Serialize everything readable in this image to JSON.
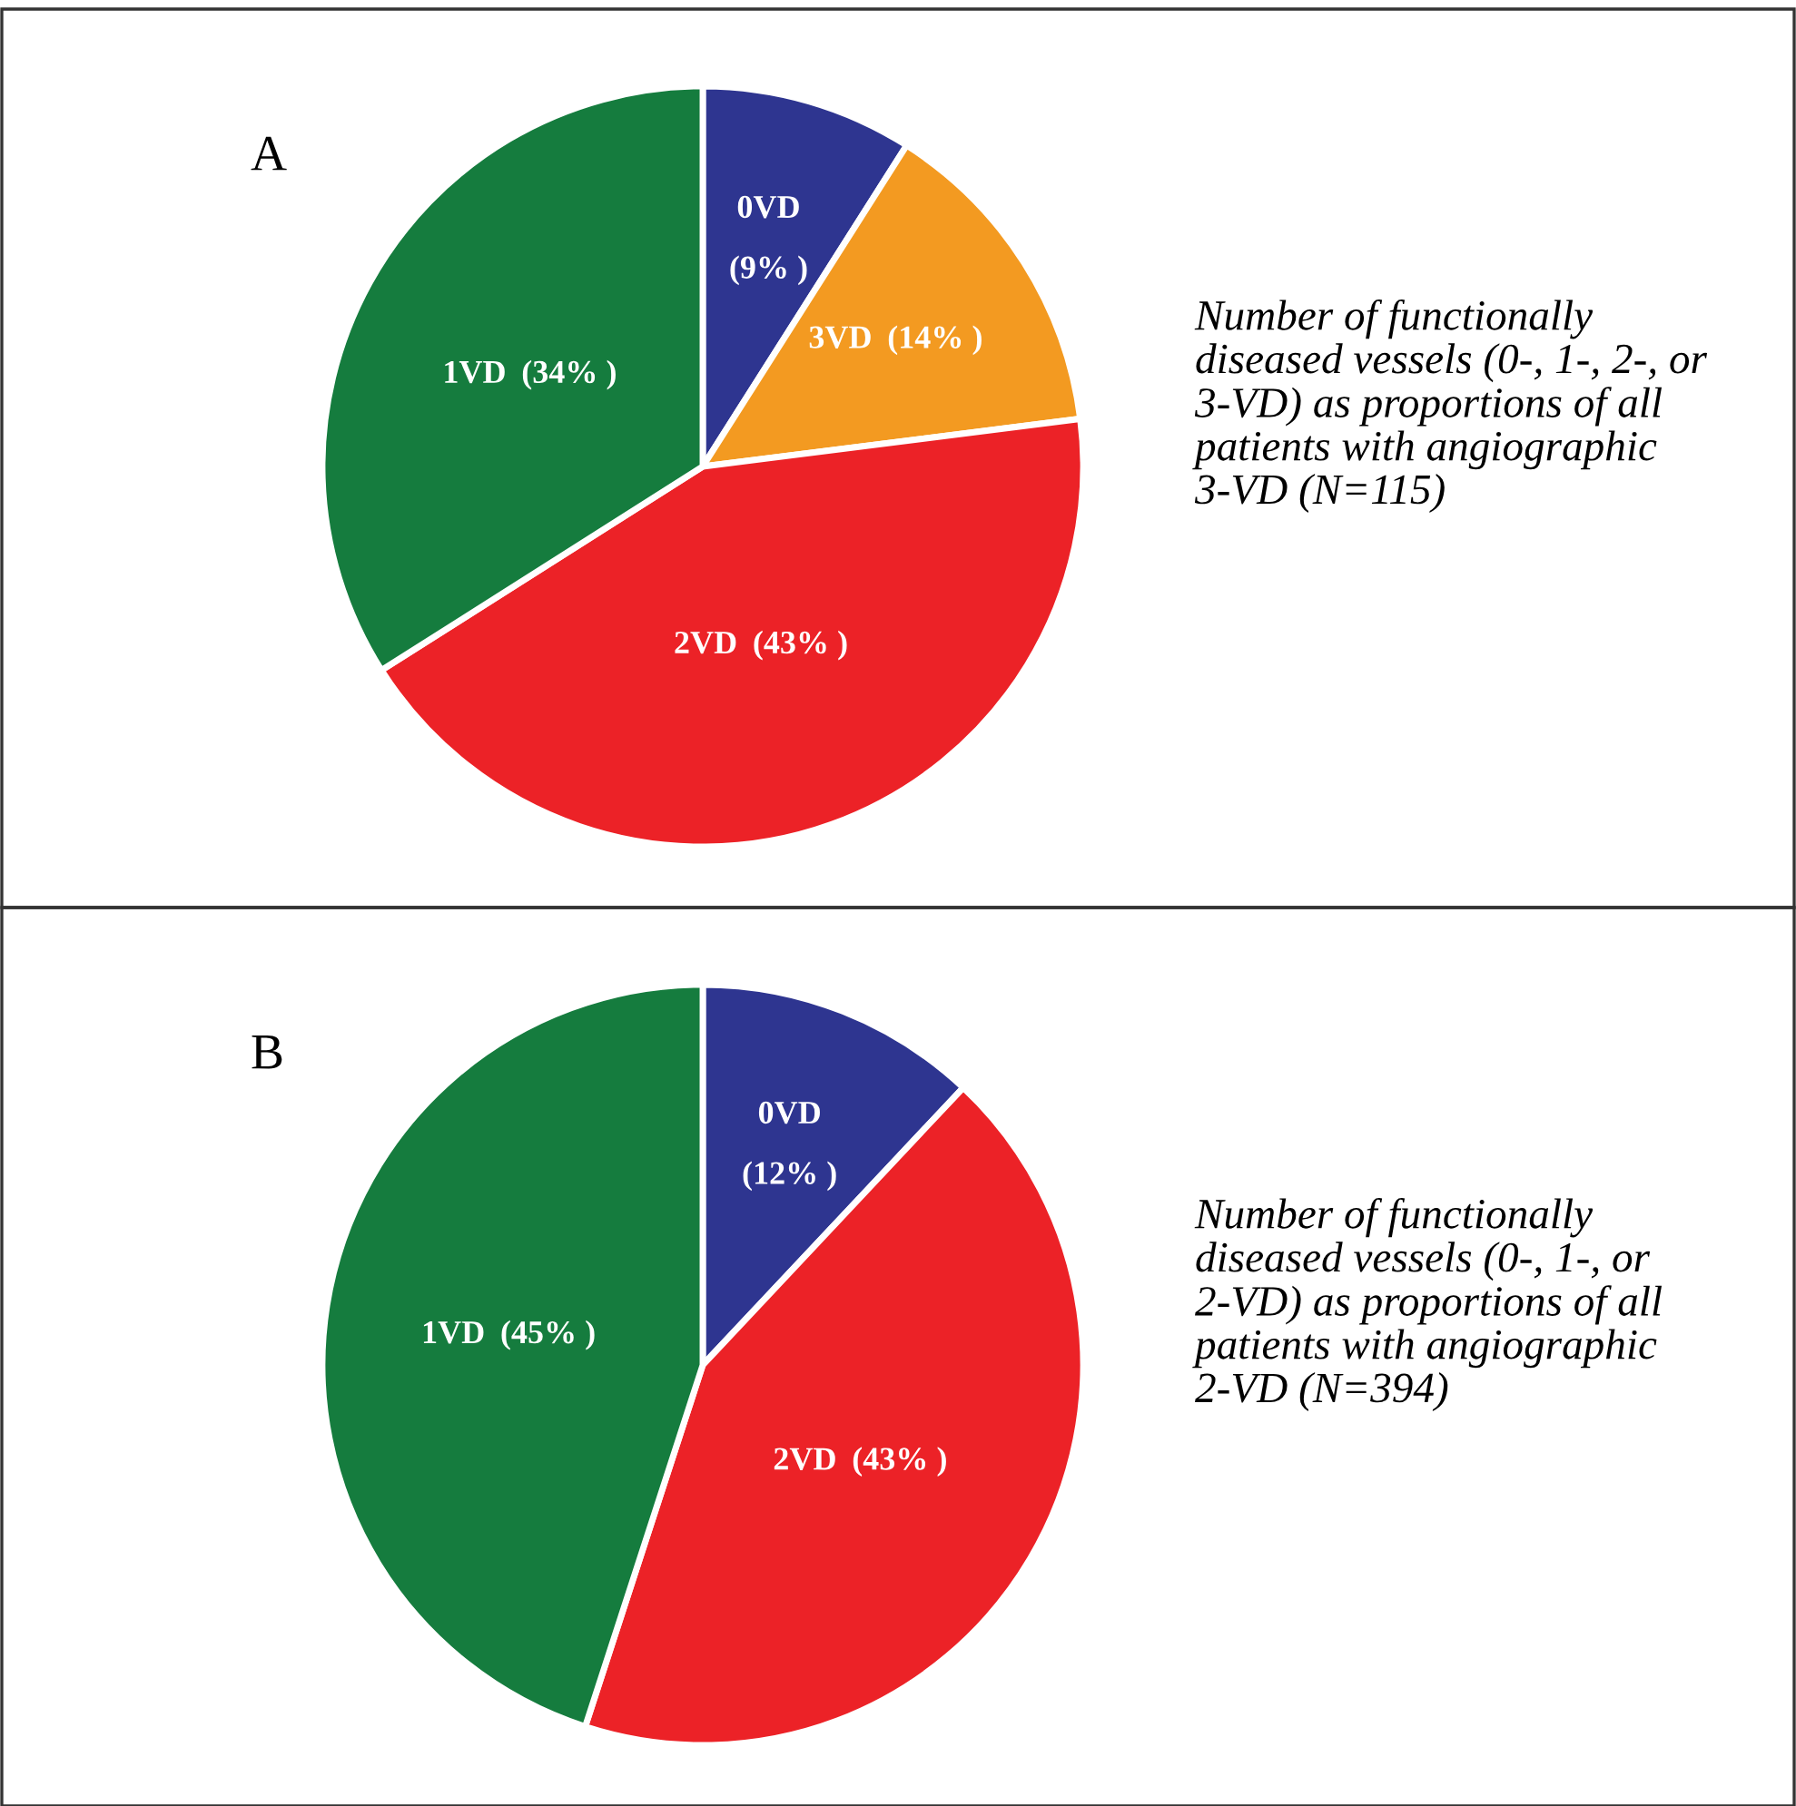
{
  "chart_data": [
    {
      "type": "pie",
      "title": "A",
      "categories": [
        "0VD",
        "3VD",
        "2VD",
        "1VD"
      ],
      "values": [
        9,
        14,
        43,
        34
      ],
      "colors": [
        "#2e3590",
        "#f39a21",
        "#ec2227",
        "#157c3e"
      ],
      "value_labels": [
        "(9% )",
        "(14% )",
        "(43% )",
        "(34% )"
      ],
      "annotations": [
        "Number of functionally diseased vessels (0-, 1-, 2-, or 3-VD) as proportions of all patients with angiographic 3-VD (N=115)"
      ]
    },
    {
      "type": "pie",
      "title": "B",
      "categories": [
        "0VD",
        "2VD",
        "1VD"
      ],
      "values": [
        12,
        43,
        45
      ],
      "colors": [
        "#2e3590",
        "#ec2227",
        "#157c3e"
      ],
      "value_labels": [
        "(12% )",
        "(43% )",
        "(45% )"
      ],
      "annotations": [
        "Number of functionally diseased vessels (0-, 1-, or 2-VD) as proportions of all patients with angiographic 2-VD (N=394)"
      ]
    }
  ]
}
